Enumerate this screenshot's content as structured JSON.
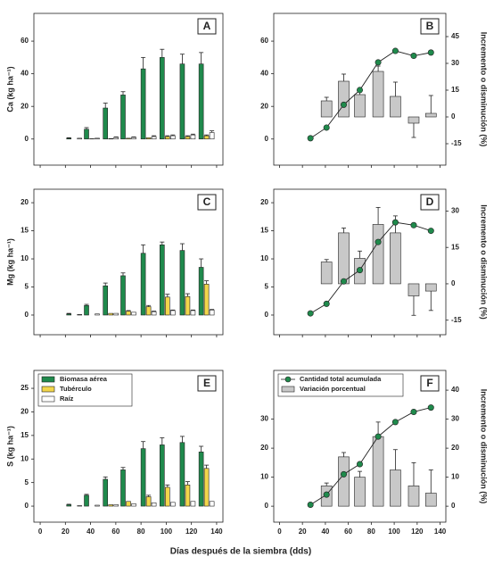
{
  "xlabel": "Días después de la siembra (dds)",
  "chart_data": [
    {
      "type": "bar",
      "label": "A",
      "ylabel": "Ca  (kg ha⁻¹)",
      "x": [
        27,
        41,
        56,
        70,
        86,
        101,
        117,
        132
      ],
      "xlim": [
        -5,
        145
      ],
      "xticks": [
        0,
        20,
        40,
        60,
        80,
        100,
        120,
        140
      ],
      "ylim": [
        -16,
        77
      ],
      "yticks": [
        0,
        20,
        40,
        60
      ],
      "series": [
        {
          "color": "#1f8a4c",
          "values": [
            0.5,
            6,
            19,
            27,
            43,
            50,
            46,
            46
          ],
          "errors": [
            0.3,
            1,
            3,
            2,
            7,
            5,
            6,
            7
          ]
        },
        {
          "color": "#f2d64b",
          "values": [
            0,
            0.2,
            0.3,
            0.5,
            0.8,
            1.5,
            1.5,
            2
          ],
          "errors": [
            0,
            0,
            0,
            0,
            0,
            0.5,
            0.5,
            0.5
          ]
        },
        {
          "color": "#ffffff",
          "values": [
            0.5,
            0.5,
            1,
            1,
            1.5,
            2,
            2.5,
            4
          ],
          "errors": [
            0,
            0,
            0.3,
            0.3,
            0.5,
            0.5,
            0.5,
            1
          ]
        }
      ]
    },
    {
      "type": "combo",
      "label": "B",
      "y2label": "Incremento o disminución (%)",
      "x": [
        27,
        41,
        56,
        70,
        86,
        101,
        117,
        132
      ],
      "xlim": [
        -5,
        145
      ],
      "xticks": [
        0,
        20,
        40,
        60,
        80,
        100,
        120,
        140
      ],
      "ylim": [
        -16,
        77
      ],
      "yticks": [
        0,
        20,
        40,
        60
      ],
      "y2lim": [
        -27,
        58
      ],
      "y2ticks": [
        -15,
        0,
        15,
        30,
        45
      ],
      "series": [
        {
          "color": "#c8c8c8",
          "axis": "y2",
          "values": [
            null,
            9,
            20,
            12.5,
            25.5,
            11.5,
            -3.5,
            2
          ],
          "errors": [
            null,
            2,
            4,
            3,
            3,
            8,
            8,
            10
          ]
        },
        {
          "color": "#1f8a4c",
          "values": [
            0.5,
            7,
            21,
            30,
            47,
            54,
            51,
            53
          ]
        }
      ]
    },
    {
      "type": "bar",
      "label": "C",
      "ylabel": "Mg  (kg ha⁻¹)",
      "x": [
        27,
        41,
        56,
        70,
        86,
        101,
        117,
        132
      ],
      "xlim": [
        -5,
        145
      ],
      "xticks": [
        0,
        20,
        40,
        60,
        80,
        100,
        120,
        140
      ],
      "ylim": [
        -3.5,
        22.4
      ],
      "yticks": [
        0,
        5,
        10,
        15,
        20
      ],
      "series": [
        {
          "color": "#1f8a4c",
          "values": [
            0.2,
            1.7,
            5.2,
            7,
            11,
            12.5,
            11.5,
            8.5
          ],
          "errors": [
            0.1,
            0.2,
            0.5,
            0.5,
            1.5,
            0.5,
            1.2,
            1.5
          ]
        },
        {
          "color": "#f2d64b",
          "values": [
            0,
            0,
            0.3,
            0.7,
            1.5,
            3.2,
            3.3,
            5.5
          ],
          "errors": [
            0,
            0,
            0,
            0.1,
            0.2,
            0.5,
            0.5,
            0.6
          ]
        },
        {
          "color": "#ffffff",
          "values": [
            0.1,
            0.2,
            0.3,
            0.5,
            0.6,
            0.8,
            0.8,
            0.9
          ],
          "errors": [
            0,
            0,
            0,
            0,
            0.1,
            0.1,
            0.1,
            0.1
          ]
        }
      ]
    },
    {
      "type": "combo",
      "label": "D",
      "y2label": "Incremento o disminución (%)",
      "x": [
        27,
        41,
        56,
        70,
        86,
        101,
        117,
        132
      ],
      "xlim": [
        -5,
        145
      ],
      "xticks": [
        0,
        20,
        40,
        60,
        80,
        100,
        120,
        140
      ],
      "ylim": [
        -3.5,
        22.4
      ],
      "yticks": [
        0,
        5,
        10,
        15,
        20
      ],
      "y2lim": [
        -21,
        39
      ],
      "y2ticks": [
        -15,
        0,
        15,
        30
      ],
      "series": [
        {
          "color": "#c8c8c8",
          "axis": "y2",
          "values": [
            null,
            9,
            21,
            10.5,
            24.5,
            21,
            -5,
            -3
          ],
          "errors": [
            null,
            1,
            2,
            3,
            7,
            7,
            8,
            8
          ]
        },
        {
          "color": "#1f8a4c",
          "values": [
            0.3,
            2,
            6,
            8,
            13,
            16.5,
            16,
            15
          ]
        }
      ]
    },
    {
      "type": "bar",
      "label": "E",
      "ylabel": "S  (kg ha⁻¹)",
      "legend": "upper left",
      "x": [
        27,
        41,
        56,
        70,
        86,
        101,
        117,
        132
      ],
      "xlim": [
        -5,
        145
      ],
      "xticks": [
        0,
        20,
        40,
        60,
        80,
        100,
        120,
        140
      ],
      "ylim": [
        -3.4,
        28.8
      ],
      "yticks": [
        0,
        5,
        10,
        15,
        20,
        25
      ],
      "series": [
        {
          "name": "Biomasa aérea",
          "color": "#1f8a4c",
          "values": [
            0.3,
            2.3,
            5.7,
            7.7,
            12.2,
            13,
            13.5,
            11.5
          ],
          "errors": [
            0.1,
            0.2,
            0.5,
            0.5,
            1.5,
            1.5,
            1.3,
            1.2
          ]
        },
        {
          "name": "Tubérculo",
          "color": "#f2d64b",
          "values": [
            0,
            0,
            0.3,
            1,
            2,
            4,
            4.5,
            8
          ],
          "errors": [
            0,
            0,
            0,
            0,
            0.3,
            0.5,
            0.7,
            0.7
          ]
        },
        {
          "name": "Raíz",
          "color": "#ffffff",
          "values": [
            0.1,
            0.2,
            0.3,
            0.5,
            0.7,
            0.8,
            1,
            1
          ],
          "errors": [
            0,
            0,
            0,
            0,
            0,
            0,
            0,
            0
          ]
        }
      ]
    },
    {
      "type": "combo",
      "label": "F",
      "y2label": "Incremento o disminución (%)",
      "legend": "upper left",
      "x": [
        27,
        41,
        56,
        70,
        86,
        101,
        117,
        132
      ],
      "xlim": [
        -5,
        145
      ],
      "xticks": [
        0,
        20,
        40,
        60,
        80,
        100,
        120,
        140
      ],
      "ylim": [
        -5.5,
        46.8
      ],
      "yticks": [
        0,
        10,
        20,
        30
      ],
      "y2lim": [
        -5.5,
        46.8
      ],
      "y2ticks": [
        0,
        10,
        20,
        30,
        40
      ],
      "series": [
        {
          "name": "Variación porcentual",
          "color": "#c8c8c8",
          "axis": "y2",
          "values": [
            null,
            7,
            17,
            10,
            24,
            12.5,
            7,
            4.5
          ],
          "errors": [
            null,
            1,
            1.5,
            2,
            5,
            7,
            8,
            8
          ]
        },
        {
          "name": "Cantidad total acumulada",
          "color": "#1f8a4c",
          "values": [
            0.5,
            4,
            11,
            14.5,
            24,
            29,
            32.5,
            34
          ]
        }
      ]
    }
  ]
}
